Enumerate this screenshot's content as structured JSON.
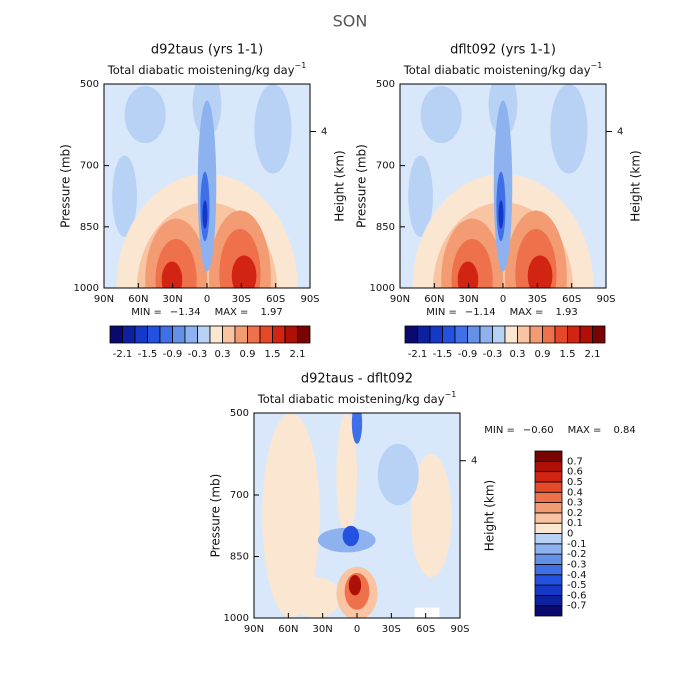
{
  "chart_data": {
    "type": "contour",
    "title": "SON",
    "palette": [
      "#0a0a6e",
      "#0c20a0",
      "#1438c8",
      "#2452e0",
      "#3f70e8",
      "#6490e8",
      "#8eb2f0",
      "#b8d2f6",
      "#fbe6d2",
      "#f8c4a2",
      "#f39c74",
      "#ee714c",
      "#e6482a",
      "#d22412",
      "#ae1008",
      "#780404"
    ],
    "panels": [
      {
        "title": "d92taus (yrs 1-1)",
        "subtitle": "Total diabatic moistening/kg day",
        "subtitle_exponent": "−1",
        "ylabel": "Pressure (mb)",
        "y2label": "Height (km)",
        "ylim": [
          500,
          1000
        ],
        "yticks": [
          500,
          700,
          850,
          1000
        ],
        "y2ticks": [
          4
        ],
        "xticks": [
          "90N",
          "60N",
          "30N",
          "0",
          "30S",
          "60S",
          "90S"
        ],
        "min_label": "MIN =",
        "min": "−1.34",
        "max_label": "MAX =",
        "max": "1.97"
      },
      {
        "title": "dflt092 (yrs 1-1)",
        "subtitle": "Total diabatic moistening/kg day",
        "subtitle_exponent": "−1",
        "ylabel": "Pressure (mb)",
        "y2label": "Height (km)",
        "ylim": [
          500,
          1000
        ],
        "yticks": [
          500,
          700,
          850,
          1000
        ],
        "y2ticks": [
          4
        ],
        "xticks": [
          "90N",
          "60N",
          "30N",
          "0",
          "30S",
          "60S",
          "90S"
        ],
        "min_label": "MIN =",
        "min": "−1.14",
        "max_label": "MAX =",
        "max": "1.93"
      },
      {
        "title": "d92taus - dflt092",
        "subtitle": "Total diabatic moistening/kg day",
        "subtitle_exponent": "−1",
        "ylabel": "Pressure (mb)",
        "y2label": "Height (km)",
        "ylim": [
          500,
          1000
        ],
        "yticks": [
          500,
          700,
          850,
          1000
        ],
        "y2ticks": [
          4
        ],
        "xticks": [
          "90N",
          "60N",
          "30N",
          "0",
          "30S",
          "60S",
          "90S"
        ],
        "min_label": "MIN =",
        "min": "−0.60",
        "max_label": "MAX =",
        "max": "0.84"
      }
    ],
    "colorbars": [
      {
        "range": [
          -2.4,
          2.4
        ],
        "labels": [
          -2.1,
          -1.5,
          -0.9,
          -0.3,
          0.3,
          0.9,
          1.5,
          2.1
        ]
      },
      {
        "range": [
          -2.4,
          2.4
        ],
        "labels": [
          -2.1,
          -1.5,
          -0.9,
          -0.3,
          0.3,
          0.9,
          1.5,
          2.1
        ]
      },
      {
        "range": [
          -0.8,
          0.8
        ],
        "labels": [
          0.7,
          0.6,
          0.5,
          0.4,
          0.3,
          0.2,
          0.1,
          0,
          -0.1,
          -0.2,
          -0.3,
          -0.4,
          -0.5,
          -0.6,
          -0.7
        ]
      }
    ]
  }
}
